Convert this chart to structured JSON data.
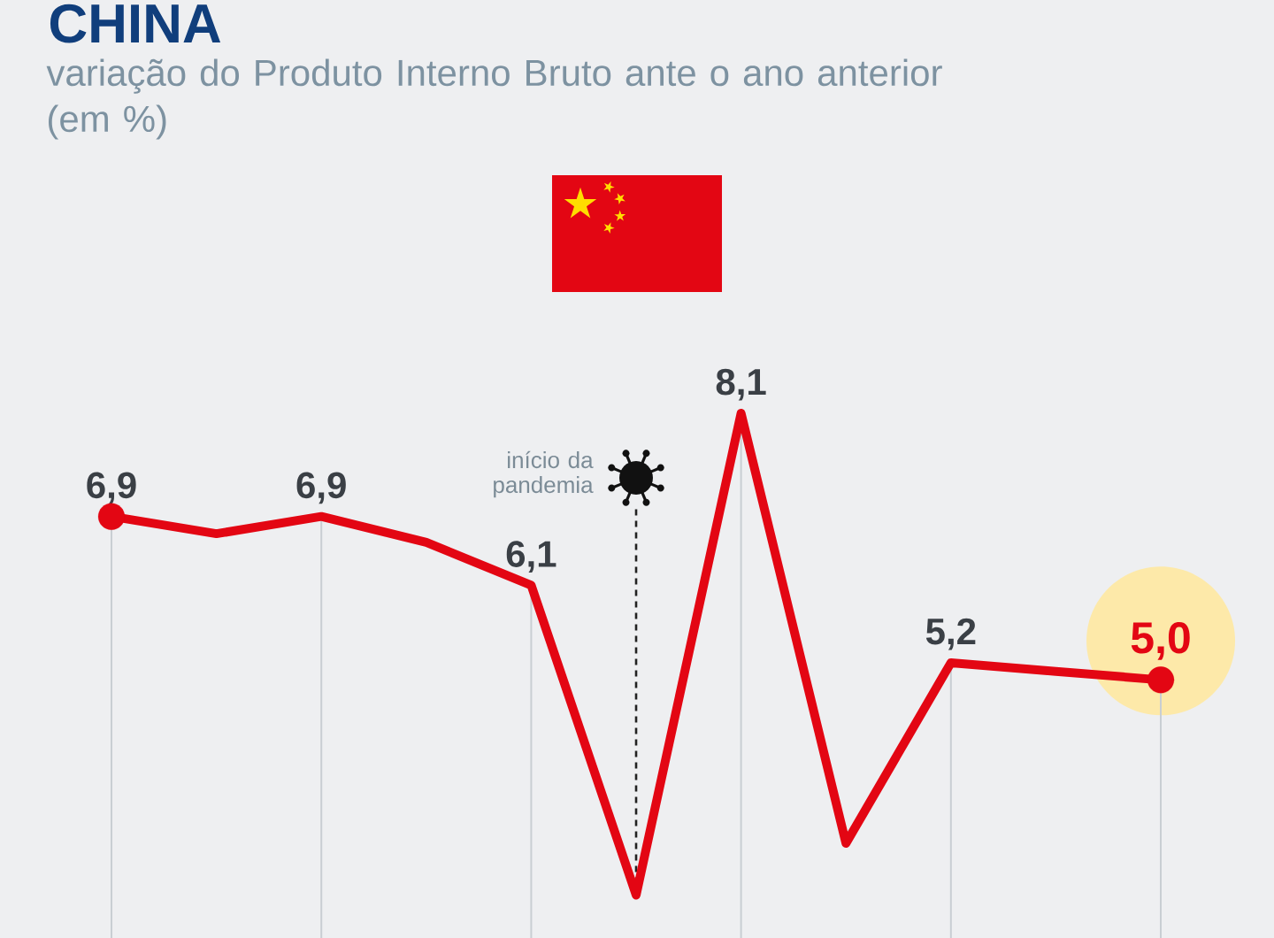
{
  "chart_data": {
    "type": "line",
    "title": "CHINA",
    "subtitle": "variação do Produto Interno Bruto ante o ano anterior (em %)",
    "categories": [
      null,
      null,
      null,
      null,
      null,
      null,
      null,
      null,
      null,
      null,
      null
    ],
    "series": [
      {
        "color": "#e30613",
        "values": [
          6.9,
          6.7,
          6.9,
          6.6,
          6.1,
          2.5,
          8.1,
          3.1,
          5.2,
          5.1,
          5.0
        ],
        "value_labels": [
          "6,9",
          null,
          "6,9",
          null,
          "6,1",
          null,
          "8,1",
          null,
          "5,2",
          null,
          "5,0"
        ]
      }
    ],
    "ylim": [
      2,
      8.1
    ],
    "grid": "x",
    "annotations": [
      "início da pandemia"
    ]
  }
}
